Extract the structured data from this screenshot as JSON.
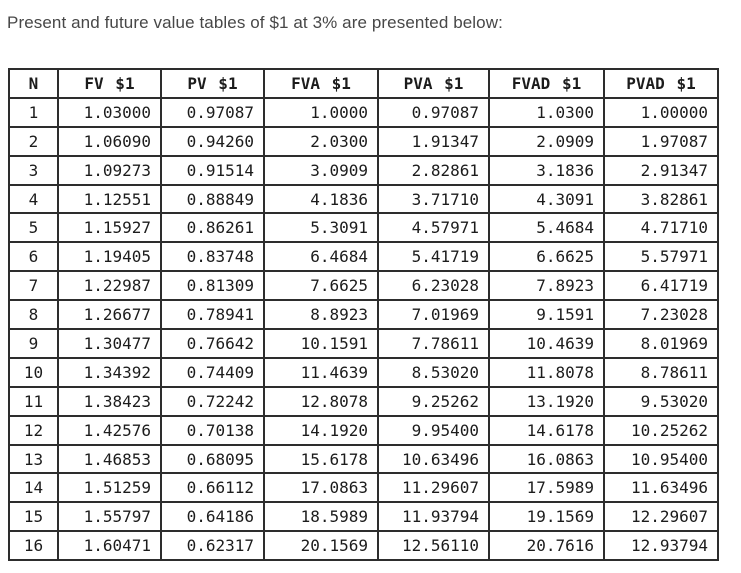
{
  "title": "Present and future value tables of $1 at 3% are presented below:",
  "table": {
    "headers": [
      "N",
      "FV $1",
      "PV $1",
      "FVA $1",
      "PVA $1",
      "FVAD $1",
      "PVAD $1"
    ],
    "rows": [
      [
        "1",
        "1.03000",
        "0.97087",
        "1.0000",
        "0.97087",
        "1.0300",
        "1.00000"
      ],
      [
        "2",
        "1.06090",
        "0.94260",
        "2.0300",
        "1.91347",
        "2.0909",
        "1.97087"
      ],
      [
        "3",
        "1.09273",
        "0.91514",
        "3.0909",
        "2.82861",
        "3.1836",
        "2.91347"
      ],
      [
        "4",
        "1.12551",
        "0.88849",
        "4.1836",
        "3.71710",
        "4.3091",
        "3.82861"
      ],
      [
        "5",
        "1.15927",
        "0.86261",
        "5.3091",
        "4.57971",
        "5.4684",
        "4.71710"
      ],
      [
        "6",
        "1.19405",
        "0.83748",
        "6.4684",
        "5.41719",
        "6.6625",
        "5.57971"
      ],
      [
        "7",
        "1.22987",
        "0.81309",
        "7.6625",
        "6.23028",
        "7.8923",
        "6.41719"
      ],
      [
        "8",
        "1.26677",
        "0.78941",
        "8.8923",
        "7.01969",
        "9.1591",
        "7.23028"
      ],
      [
        "9",
        "1.30477",
        "0.76642",
        "10.1591",
        "7.78611",
        "10.4639",
        "8.01969"
      ],
      [
        "10",
        "1.34392",
        "0.74409",
        "11.4639",
        "8.53020",
        "11.8078",
        "8.78611"
      ],
      [
        "11",
        "1.38423",
        "0.72242",
        "12.8078",
        "9.25262",
        "13.1920",
        "9.53020"
      ],
      [
        "12",
        "1.42576",
        "0.70138",
        "14.1920",
        "9.95400",
        "14.6178",
        "10.25262"
      ],
      [
        "13",
        "1.46853",
        "0.68095",
        "15.6178",
        "10.63496",
        "16.0863",
        "10.95400"
      ],
      [
        "14",
        "1.51259",
        "0.66112",
        "17.0863",
        "11.29607",
        "17.5989",
        "11.63496"
      ],
      [
        "15",
        "1.55797",
        "0.64186",
        "18.5989",
        "11.93794",
        "19.1569",
        "12.29607"
      ],
      [
        "16",
        "1.60471",
        "0.62317",
        "20.1569",
        "12.56110",
        "20.7616",
        "12.93794"
      ]
    ]
  },
  "colors": {
    "title_text": "#474747",
    "table_text": "#1c1c1c",
    "table_border": "#2d2d2d",
    "background": "#ffffff"
  }
}
